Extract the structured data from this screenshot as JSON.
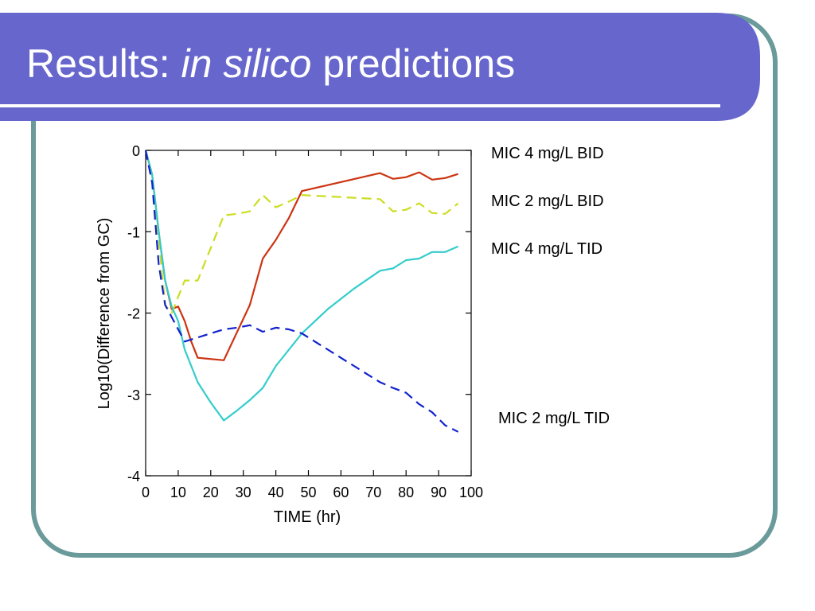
{
  "slide": {
    "title_prefix": "Results: ",
    "title_italic": "in silico",
    "title_suffix": " predictions",
    "colors": {
      "title_band": "#6666cc",
      "frame_border": "#6b9a9a",
      "title_rule": "#ffffff"
    }
  },
  "chart_data": {
    "type": "line",
    "title": "",
    "xlabel": "TIME (hr)",
    "ylabel": "Log10(Difference from GC)",
    "xlim": [
      0,
      100
    ],
    "ylim": [
      -4,
      0
    ],
    "xticks": [
      0,
      10,
      20,
      30,
      40,
      50,
      60,
      70,
      80,
      90,
      100
    ],
    "yticks": [
      0,
      -1,
      -2,
      -3,
      -4
    ],
    "grid": false,
    "series": [
      {
        "name": "MIC 4 mg/L BID",
        "color": "#cc3311",
        "dash": "solid",
        "points": [
          [
            0,
            0
          ],
          [
            2,
            -0.3
          ],
          [
            4,
            -1.0
          ],
          [
            6,
            -1.6
          ],
          [
            8,
            -1.95
          ],
          [
            10,
            -1.92
          ],
          [
            12,
            -2.1
          ],
          [
            14,
            -2.35
          ],
          [
            16,
            -2.55
          ],
          [
            24,
            -2.58
          ],
          [
            32,
            -1.9
          ],
          [
            36,
            -1.33
          ],
          [
            40,
            -1.1
          ],
          [
            44,
            -0.83
          ],
          [
            48,
            -0.5
          ],
          [
            72,
            -0.28
          ],
          [
            76,
            -0.35
          ],
          [
            80,
            -0.33
          ],
          [
            84,
            -0.27
          ],
          [
            88,
            -0.36
          ],
          [
            92,
            -0.34
          ],
          [
            96,
            -0.29
          ]
        ]
      },
      {
        "name": "MIC 2 mg/L BID",
        "color": "#ccdd22",
        "dash": "dashed",
        "points": [
          [
            0,
            0
          ],
          [
            2,
            -0.35
          ],
          [
            4,
            -1.1
          ],
          [
            6,
            -1.9
          ],
          [
            8,
            -2.0
          ],
          [
            10,
            -1.8
          ],
          [
            12,
            -1.6
          ],
          [
            16,
            -1.6
          ],
          [
            20,
            -1.2
          ],
          [
            24,
            -0.8
          ],
          [
            28,
            -0.78
          ],
          [
            32,
            -0.75
          ],
          [
            36,
            -0.55
          ],
          [
            40,
            -0.7
          ],
          [
            44,
            -0.63
          ],
          [
            48,
            -0.55
          ],
          [
            72,
            -0.6
          ],
          [
            76,
            -0.75
          ],
          [
            80,
            -0.73
          ],
          [
            84,
            -0.65
          ],
          [
            88,
            -0.77
          ],
          [
            92,
            -0.78
          ],
          [
            96,
            -0.65
          ]
        ]
      },
      {
        "name": "MIC 4 mg/L TID",
        "color": "#33cccc",
        "dash": "solid",
        "points": [
          [
            0,
            0
          ],
          [
            2,
            -0.3
          ],
          [
            4,
            -1.0
          ],
          [
            6,
            -1.6
          ],
          [
            8,
            -1.92
          ],
          [
            10,
            -2.1
          ],
          [
            12,
            -2.45
          ],
          [
            16,
            -2.85
          ],
          [
            20,
            -3.1
          ],
          [
            24,
            -3.32
          ],
          [
            28,
            -3.2
          ],
          [
            32,
            -3.07
          ],
          [
            36,
            -2.92
          ],
          [
            40,
            -2.65
          ],
          [
            44,
            -2.45
          ],
          [
            48,
            -2.25
          ],
          [
            56,
            -1.95
          ],
          [
            64,
            -1.7
          ],
          [
            72,
            -1.48
          ],
          [
            76,
            -1.45
          ],
          [
            80,
            -1.35
          ],
          [
            84,
            -1.33
          ],
          [
            88,
            -1.25
          ],
          [
            92,
            -1.25
          ],
          [
            96,
            -1.18
          ]
        ]
      },
      {
        "name": "MIC 2 mg/L TID",
        "color": "#1122cc",
        "dash": "dashed",
        "points": [
          [
            0,
            0
          ],
          [
            2,
            -0.4
          ],
          [
            4,
            -1.4
          ],
          [
            6,
            -1.9
          ],
          [
            8,
            -2.05
          ],
          [
            10,
            -2.2
          ],
          [
            12,
            -2.35
          ],
          [
            16,
            -2.3
          ],
          [
            20,
            -2.25
          ],
          [
            24,
            -2.2
          ],
          [
            28,
            -2.18
          ],
          [
            32,
            -2.15
          ],
          [
            36,
            -2.23
          ],
          [
            40,
            -2.18
          ],
          [
            44,
            -2.2
          ],
          [
            48,
            -2.25
          ],
          [
            56,
            -2.45
          ],
          [
            64,
            -2.65
          ],
          [
            72,
            -2.85
          ],
          [
            76,
            -2.92
          ],
          [
            80,
            -2.98
          ],
          [
            84,
            -3.12
          ],
          [
            88,
            -3.22
          ],
          [
            92,
            -3.38
          ],
          [
            96,
            -3.46
          ]
        ]
      }
    ]
  }
}
